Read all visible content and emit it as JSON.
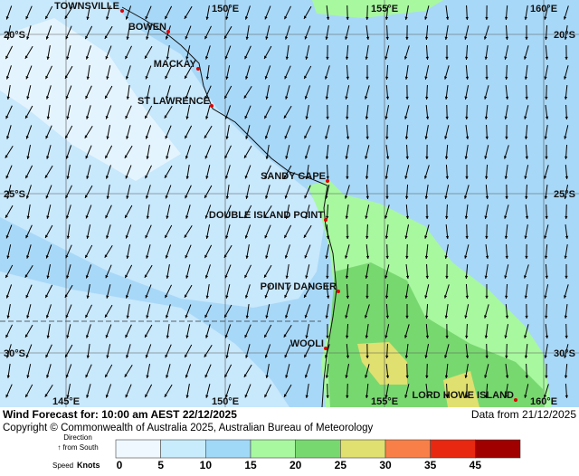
{
  "map": {
    "lon_labels": [
      "145°E",
      "150°E",
      "155°E",
      "160°E"
    ],
    "lat_labels": [
      "20°S",
      "25°S",
      "30°S"
    ],
    "places": [
      "TOWNSVILLE",
      "BOWEN",
      "MACKAY",
      "ST LAWRENCE",
      "SANDY CAPE",
      "DOUBLE ISLAND POINT",
      "POINT DANGER",
      "WOOLI",
      "LORD HOWE ISLAND"
    ]
  },
  "footer": {
    "title": "Wind Forecast for: 10:00 am AEST 22/12/2025",
    "data_from": "Data from 21/12/2025",
    "copyright": "Copyright © Commonwealth of Australia 2025, Australian Bureau of Meteorology"
  },
  "legend": {
    "direction_label": "Direction",
    "direction_note": "↑ from South",
    "speed_label": "Speed",
    "units": "Knots",
    "ticks": [
      0,
      5,
      10,
      15,
      20,
      25,
      30,
      35,
      45
    ],
    "colors": [
      "#f0f8ff",
      "#c8ecfc",
      "#a0d8f8",
      "#a8f8a0",
      "#78d870",
      "#e0e070",
      "#f88048",
      "#e82810",
      "#a00000"
    ]
  }
}
